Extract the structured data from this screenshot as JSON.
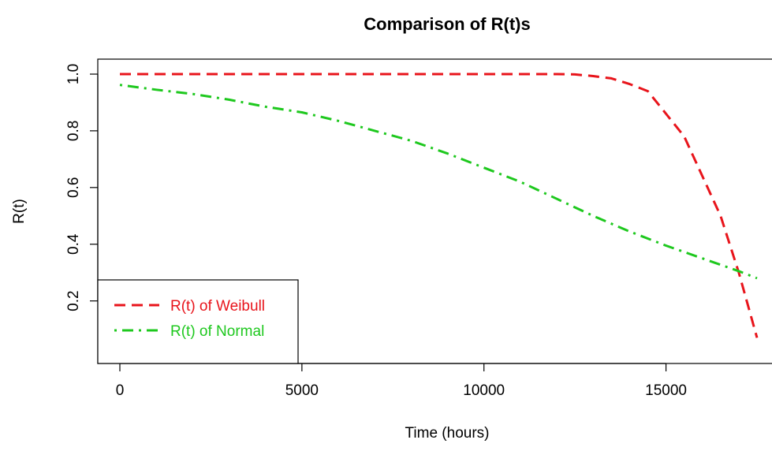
{
  "chart_data": {
    "type": "line",
    "title": "Comparison of R(t)s",
    "xlabel": "Time (hours)",
    "ylabel": "R(t)",
    "xlim": [
      0,
      17500
    ],
    "ylim": [
      0.06,
      1.0
    ],
    "xticks": [
      "0",
      "5000",
      "10000",
      "15000"
    ],
    "xtick_values": [
      0,
      5000,
      10000,
      15000
    ],
    "yticks": [
      "0.2",
      "0.4",
      "0.6",
      "0.8",
      "1.0"
    ],
    "ytick_values": [
      0.2,
      0.4,
      0.6,
      0.8,
      1.0
    ],
    "grid": false,
    "legend_position": "bottom-left",
    "series": [
      {
        "name": "R(t) of Weibull",
        "color": "#e8141b",
        "line_style": "dashed",
        "x": [
          0,
          2000,
          4000,
          6000,
          8000,
          10000,
          12000,
          12500,
          13000,
          13500,
          14000,
          14500,
          15000,
          15500,
          16000,
          16500,
          17000,
          17500
        ],
        "y": [
          1.0,
          1.0,
          1.0,
          1.0,
          1.0,
          1.0,
          1.0,
          0.999,
          0.993,
          0.985,
          0.965,
          0.94,
          0.86,
          0.78,
          0.64,
          0.5,
          0.3,
          0.07
        ]
      },
      {
        "name": "R(t) of Normal",
        "color": "#1ec81e",
        "line_style": "dotdash",
        "x": [
          0,
          1000,
          2000,
          3000,
          4000,
          5000,
          6000,
          7000,
          8000,
          9000,
          10000,
          11000,
          12000,
          13000,
          14000,
          15000,
          16000,
          17000,
          17500
        ],
        "y": [
          0.962,
          0.945,
          0.93,
          0.91,
          0.885,
          0.865,
          0.835,
          0.8,
          0.765,
          0.72,
          0.67,
          0.62,
          0.56,
          0.5,
          0.445,
          0.395,
          0.35,
          0.305,
          0.28
        ]
      }
    ]
  }
}
